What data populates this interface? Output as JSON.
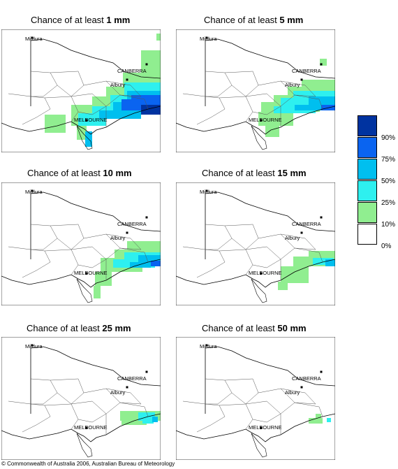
{
  "panels": [
    {
      "prefix": "Chance of at least ",
      "amount": "1 mm"
    },
    {
      "prefix": "Chance of at least ",
      "amount": "5 mm"
    },
    {
      "prefix": "Chance of at least ",
      "amount": "10 mm"
    },
    {
      "prefix": "Chance of at least ",
      "amount": "15 mm"
    },
    {
      "prefix": "Chance of at least ",
      "amount": "25 mm"
    },
    {
      "prefix": "Chance of at least ",
      "amount": "50 mm"
    }
  ],
  "places": {
    "mildura": "Mildura",
    "canberra": "CANBERRA",
    "albury": "Albury",
    "melbourne": "MELBOURNE"
  },
  "legend": {
    "labels": [
      "90%",
      "75%",
      "50%",
      "25%",
      "10%",
      "0%"
    ],
    "colors": [
      "#0033a0",
      "#0a64f0",
      "#00bfef",
      "#2ef0ef",
      "#90ee90",
      "#ffffff"
    ]
  },
  "copyright": "© Commonwealth of Australia 2006, Australian Bureau of Meteorology"
}
